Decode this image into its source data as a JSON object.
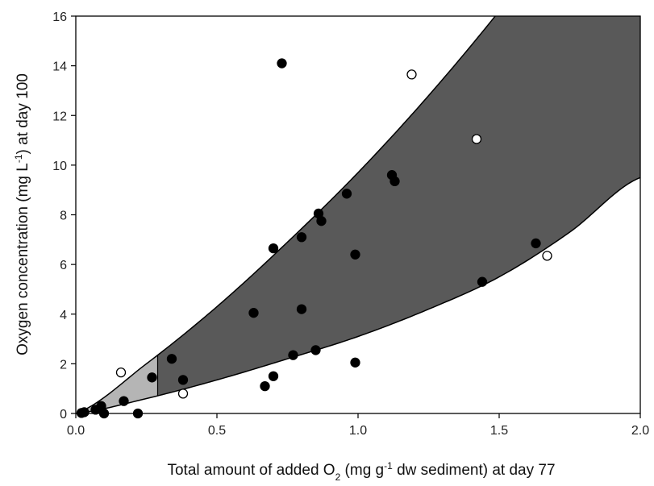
{
  "chart_data": {
    "type": "scatter",
    "title": "",
    "xlabel": {
      "parts": [
        {
          "text": "Total amount of added O",
          "style": "normal"
        },
        {
          "text": "2",
          "style": "sub"
        },
        {
          "text": " (mg g",
          "style": "normal"
        },
        {
          "text": "-1",
          "style": "sup"
        },
        {
          "text": " dw sediment) at day 77",
          "style": "normal"
        }
      ]
    },
    "ylabel": {
      "parts": [
        {
          "text": "Oxygen concentration (mg L",
          "style": "normal"
        },
        {
          "text": "-1",
          "style": "sup"
        },
        {
          "text": ") at day 100",
          "style": "normal"
        }
      ]
    },
    "xlim": [
      0,
      2.0
    ],
    "ylim": [
      0,
      16
    ],
    "x_ticks": [
      0.0,
      0.5,
      1.0,
      1.5,
      2.0
    ],
    "x_tick_labels": [
      "0.0",
      "0.5",
      "1.0",
      "1.5",
      "2.0"
    ],
    "y_ticks": [
      0,
      2,
      4,
      6,
      8,
      10,
      12,
      14,
      16
    ],
    "y_tick_labels": [
      "0",
      "2",
      "4",
      "6",
      "8",
      "10",
      "12",
      "14",
      "16"
    ],
    "grid": false,
    "colors": {
      "dark_region": "#595959",
      "light_region": "#b5b5b5",
      "filled_marker": "#000000",
      "open_marker_fill": "#ffffff",
      "outline": "#000000"
    },
    "regions": {
      "upper_curve": [
        [
          0,
          0
        ],
        [
          0.25,
          2.0
        ],
        [
          0.5,
          4.3
        ],
        [
          0.75,
          6.9
        ],
        [
          1.0,
          9.7
        ],
        [
          1.25,
          12.8
        ],
        [
          1.5,
          16.2
        ],
        [
          1.75,
          19.9
        ],
        [
          2.0,
          23.9
        ]
      ],
      "lower_curve": [
        [
          0,
          0
        ],
        [
          0.25,
          0.6
        ],
        [
          0.5,
          1.35
        ],
        [
          0.75,
          2.2
        ],
        [
          1.0,
          3.1
        ],
        [
          1.25,
          4.2
        ],
        [
          1.5,
          5.5
        ],
        [
          1.75,
          7.3
        ],
        [
          2.0,
          9.5
        ]
      ],
      "light_region_x_end": 0.29
    },
    "series": [
      {
        "marker": "filled",
        "points": [
          [
            0.02,
            0.02
          ],
          [
            0.03,
            0.05
          ],
          [
            0.07,
            0.15
          ],
          [
            0.09,
            0.3
          ],
          [
            0.1,
            0.0
          ],
          [
            0.17,
            0.5
          ],
          [
            0.22,
            0.0
          ],
          [
            0.27,
            1.45
          ],
          [
            0.34,
            2.2
          ],
          [
            0.38,
            1.35
          ],
          [
            0.63,
            4.05
          ],
          [
            0.67,
            1.1
          ],
          [
            0.7,
            1.5
          ],
          [
            0.7,
            6.65
          ],
          [
            0.73,
            14.1
          ],
          [
            0.77,
            2.35
          ],
          [
            0.8,
            4.2
          ],
          [
            0.8,
            7.1
          ],
          [
            0.85,
            2.55
          ],
          [
            0.86,
            8.05
          ],
          [
            0.87,
            7.75
          ],
          [
            0.96,
            8.85
          ],
          [
            0.99,
            6.4
          ],
          [
            0.99,
            2.05
          ],
          [
            1.12,
            9.6
          ],
          [
            1.13,
            9.35
          ],
          [
            1.44,
            5.3
          ],
          [
            1.63,
            6.85
          ]
        ]
      },
      {
        "marker": "open",
        "points": [
          [
            0.16,
            1.65
          ],
          [
            0.38,
            0.8
          ],
          [
            1.19,
            13.65
          ],
          [
            1.42,
            11.05
          ],
          [
            1.67,
            6.35
          ]
        ]
      }
    ]
  }
}
